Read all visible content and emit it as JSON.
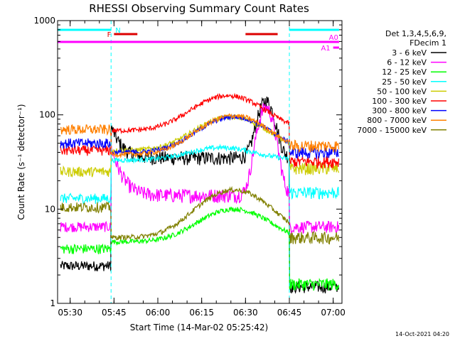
{
  "chart_data": {
    "type": "line",
    "title": "RHESSI Observing Summary Count Rates",
    "xlabel": "Start Time (14-Mar-02 05:25:42)",
    "ylabel": "Count Rate (s⁻¹ detector⁻¹)",
    "yscale": "log",
    "ylim": [
      1,
      1000
    ],
    "xlim": [
      "05:25:42",
      "07:03:00"
    ],
    "x_tick_labels": [
      "05:30",
      "05:45",
      "06:00",
      "06:15",
      "06:30",
      "06:45",
      "07:00"
    ],
    "y_tick_labels": [
      "1",
      "10",
      "100",
      "1000"
    ],
    "legend_header": [
      "Det 1,3,4,5,6,9,",
      "FDecim 1"
    ],
    "legend_position": "right",
    "timestamp": "14-Oct-2021 04:20",
    "flag_bars": [
      {
        "label": "N",
        "color": "#00ffff",
        "segments": [
          [
            "05:25:42",
            "05:44:00"
          ],
          [
            "06:45:00",
            "07:02:00"
          ]
        ]
      },
      {
        "label": "F",
        "color": "#dd0000",
        "segments": [
          [
            "05:45:00",
            "05:53:00"
          ],
          [
            "06:30:00",
            "06:41:00"
          ]
        ]
      },
      {
        "label": "A0",
        "color": "#ff00ff",
        "segments": [
          [
            "05:25:42",
            "07:02:00"
          ]
        ]
      },
      {
        "label": "A1",
        "color": "#ff00ff",
        "segments": [
          [
            "07:00:00",
            "07:02:00"
          ]
        ]
      }
    ],
    "night_boundaries": [
      "05:44:00",
      "06:45:00"
    ],
    "series": [
      {
        "name": "3 - 6 keV",
        "color": "#000000",
        "shape": "lowE",
        "values": {
          "pre": 2.5,
          "day_start": 75,
          "day_min": 35,
          "peak": 140,
          "peak_time": "06:37:00",
          "post": 1.5
        }
      },
      {
        "name": "6 - 12 keV",
        "color": "#ff00ff",
        "shape": "midE",
        "values": {
          "pre": 6.5,
          "day_start": 45,
          "day_min": 14,
          "peak": 120,
          "peak_time": "06:37:00",
          "post": 6.5
        }
      },
      {
        "name": "12 - 25 keV",
        "color": "#00ff00",
        "shape": "bump",
        "values": {
          "pre": 3.8,
          "day_base": 4.5,
          "peak": 10,
          "peak_time": "06:26:00",
          "post": 1.6
        }
      },
      {
        "name": "25 - 50 keV",
        "color": "#00ffff",
        "shape": "bump",
        "values": {
          "pre": 13,
          "day_base": 33,
          "peak": 45,
          "peak_time": "06:22:00",
          "post": 15
        }
      },
      {
        "name": "50 - 100 keV",
        "color": "#cccc00",
        "shape": "bump",
        "values": {
          "pre": 25,
          "day_base": 42,
          "peak": 95,
          "peak_time": "06:25:00",
          "post": 27
        }
      },
      {
        "name": "100 - 300 keV",
        "color": "#ff0000",
        "shape": "bump",
        "values": {
          "pre": 42,
          "day_base": 68,
          "peak": 160,
          "peak_time": "06:24:00",
          "post": 32
        }
      },
      {
        "name": "300 - 800 keV",
        "color": "#0000ff",
        "shape": "bump",
        "values": {
          "pre": 50,
          "day_base": 40,
          "peak": 95,
          "peak_time": "06:26:00",
          "post": 40
        }
      },
      {
        "name": "800 - 7000 keV",
        "color": "#ff8000",
        "shape": "bump",
        "values": {
          "pre": 70,
          "day_base": 38,
          "peak": 98,
          "peak_time": "06:26:00",
          "post": 47
        }
      },
      {
        "name": "7000 - 15000 keV",
        "color": "#808000",
        "shape": "bump",
        "values": {
          "pre": 10.5,
          "day_base": 5,
          "peak": 16,
          "peak_time": "06:26:00",
          "post": 5
        }
      }
    ]
  }
}
